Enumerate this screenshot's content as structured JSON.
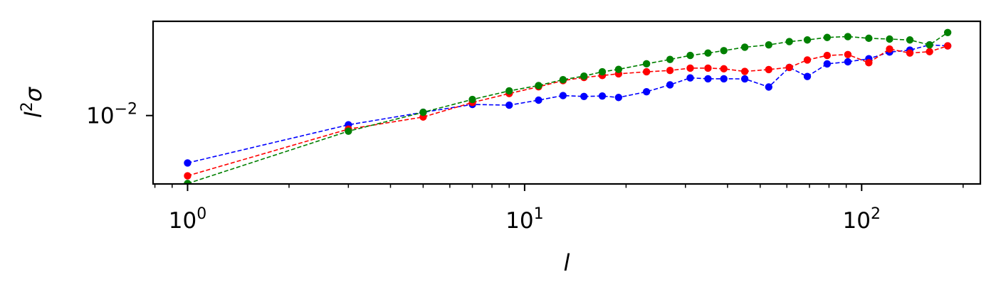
{
  "chart_data": {
    "type": "line",
    "xlabel": "l",
    "ylabel": "l",
    "ylabel_superscript": "2",
    "ylabel_greek": "σ",
    "xscale": "log",
    "yscale": "log",
    "xlim": [
      0.79,
      225
    ],
    "ylim": [
      0.00595,
      0.02045
    ],
    "grid": false,
    "legend": "none",
    "x_ticks": [
      {
        "base": "10",
        "exp": "0",
        "value": 1
      },
      {
        "base": "10",
        "exp": "1",
        "value": 10
      },
      {
        "base": "10",
        "exp": "2",
        "value": 100
      }
    ],
    "y_ticks": [
      {
        "base": "10",
        "exp": "−2",
        "value": 0.01
      }
    ],
    "x": [
      1,
      3,
      5,
      7,
      9,
      11,
      13,
      15,
      17,
      19,
      23,
      27,
      31,
      35,
      39,
      45,
      53,
      61,
      69,
      79,
      91,
      105,
      121,
      139,
      159,
      180
    ],
    "series": [
      {
        "color": "#0000ff",
        "values": [
          0.00698,
          0.00932,
          0.01025,
          0.01088,
          0.01082,
          0.01124,
          0.01164,
          0.01156,
          0.0116,
          0.01147,
          0.01198,
          0.01263,
          0.01331,
          0.01322,
          0.01322,
          0.01321,
          0.01242,
          0.01441,
          0.01345,
          0.0148,
          0.01504,
          0.01539,
          0.01619,
          0.01643,
          0.0171,
          0.01697
        ]
      },
      {
        "color": "#ff0000",
        "values": [
          0.00633,
          0.00902,
          0.00989,
          0.01104,
          0.01182,
          0.01244,
          0.01304,
          0.01335,
          0.01355,
          0.01373,
          0.01394,
          0.01408,
          0.01433,
          0.01433,
          0.01426,
          0.01398,
          0.01418,
          0.01441,
          0.01525,
          0.01578,
          0.01589,
          0.01493,
          0.01657,
          0.01607,
          0.01624,
          0.01697
        ]
      },
      {
        "color": "#008000",
        "values": [
          0.00597,
          0.00888,
          0.01025,
          0.0113,
          0.01206,
          0.01256,
          0.01313,
          0.01349,
          0.01394,
          0.0142,
          0.01481,
          0.01531,
          0.01578,
          0.01607,
          0.01637,
          0.0168,
          0.0171,
          0.01753,
          0.01775,
          0.01809,
          0.01821,
          0.01798,
          0.01787,
          0.01775,
          0.0171,
          0.01878
        ]
      }
    ]
  }
}
